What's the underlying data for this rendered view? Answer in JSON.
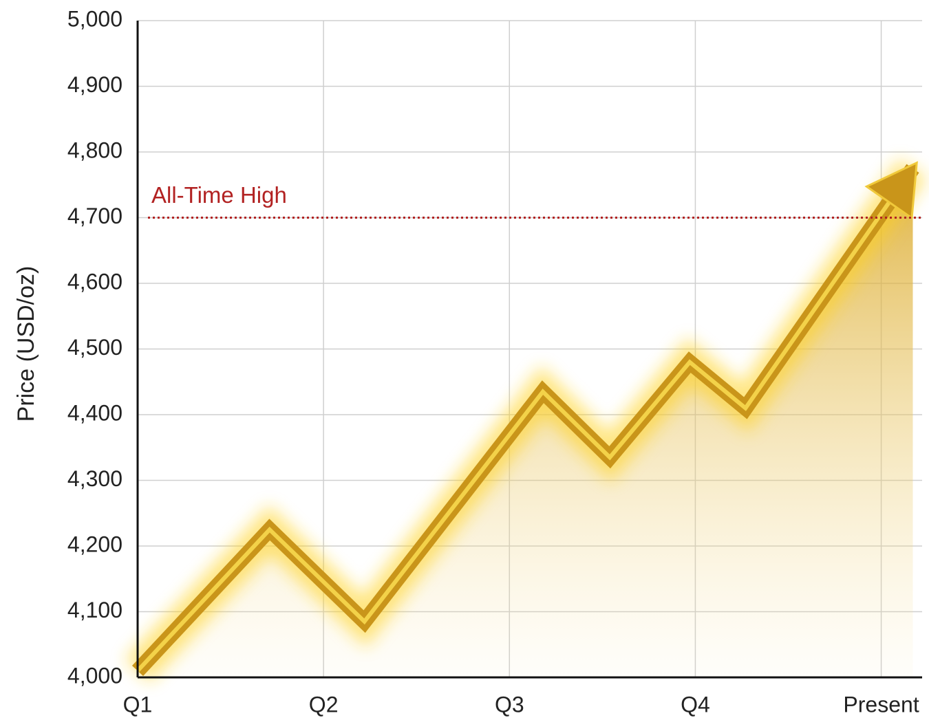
{
  "chart_data": {
    "type": "line",
    "y_label": "Price (USD/oz)",
    "x": [
      0,
      0.71,
      1.22,
      2.18,
      2.54,
      2.97,
      3.27,
      4.17
    ],
    "values": [
      4010,
      4225,
      4085,
      4435,
      4335,
      4480,
      4410,
      4775
    ],
    "color": "#c9951a",
    "xlim": [
      0,
      4.22
    ],
    "xticks": [
      {
        "value": 0,
        "label": "Q1"
      },
      {
        "value": 1,
        "label": "Q2"
      },
      {
        "value": 2,
        "label": "Q3"
      },
      {
        "value": 3,
        "label": "Q4"
      },
      {
        "value": 4,
        "label": "Present"
      }
    ],
    "ylim": [
      4000,
      5000
    ],
    "yticks": [
      {
        "value": 4000,
        "label": "4,000"
      },
      {
        "value": 4100,
        "label": "4,100"
      },
      {
        "value": 4200,
        "label": "4,200"
      },
      {
        "value": 4300,
        "label": "4,300"
      },
      {
        "value": 4400,
        "label": "4,400"
      },
      {
        "value": 4500,
        "label": "4,500"
      },
      {
        "value": 4600,
        "label": "4,600"
      },
      {
        "value": 4700,
        "label": "4,700"
      },
      {
        "value": 4800,
        "label": "4,800"
      },
      {
        "value": 4900,
        "label": "4,900"
      },
      {
        "value": 5000,
        "label": "5,000"
      }
    ],
    "grid": true,
    "reference_line": {
      "value": 4700,
      "label": "All-Time High",
      "color": "#b22222"
    }
  }
}
